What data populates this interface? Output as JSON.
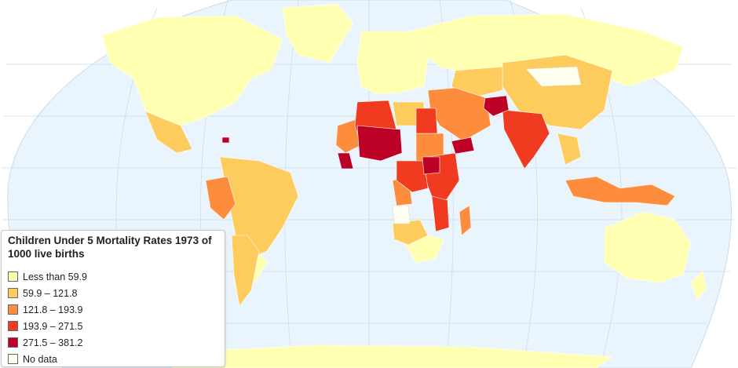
{
  "legend": {
    "title": "Children Under 5 Mortality Rates 1973 of 1000 live births",
    "items": [
      {
        "label": "Less than 59.9",
        "color": "#ffffb2"
      },
      {
        "label": "59.9 – 121.8",
        "color": "#fecc5c"
      },
      {
        "label": "121.8 – 193.9",
        "color": "#fd8d3c"
      },
      {
        "label": "193.9 – 271.5",
        "color": "#f03b20"
      },
      {
        "label": "271.5 – 381.2",
        "color": "#bd0026"
      },
      {
        "label": "No data",
        "color": "#fffff0"
      }
    ]
  },
  "map": {
    "projection": "Robinson",
    "ocean_color": "#e9f4fd",
    "graticule_color": "#c9dcec"
  }
}
